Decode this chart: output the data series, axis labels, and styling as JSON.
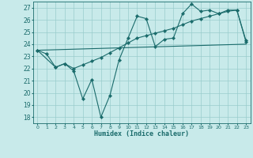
{
  "xlabel": "Humidex (Indice chaleur)",
  "xlim": [
    -0.5,
    23.5
  ],
  "ylim": [
    17.5,
    27.5
  ],
  "xticks": [
    0,
    1,
    2,
    3,
    4,
    5,
    6,
    7,
    8,
    9,
    10,
    11,
    12,
    13,
    14,
    15,
    16,
    17,
    18,
    19,
    20,
    21,
    22,
    23
  ],
  "yticks": [
    18,
    19,
    20,
    21,
    22,
    23,
    24,
    25,
    26,
    27
  ],
  "bg_color": "#c8eaea",
  "grid_color": "#99cccc",
  "line_color": "#1a6b6b",
  "line1_x": [
    0,
    1,
    2,
    3,
    4,
    5,
    6,
    7,
    8,
    9,
    10,
    11,
    12,
    13,
    14,
    15,
    16,
    17,
    18,
    19,
    20,
    21,
    22,
    23
  ],
  "line1_y": [
    23.5,
    23.2,
    22.1,
    22.4,
    21.8,
    19.5,
    21.1,
    18.0,
    19.8,
    22.7,
    24.5,
    26.3,
    26.1,
    23.8,
    24.4,
    24.5,
    26.5,
    27.3,
    26.7,
    26.8,
    26.5,
    26.8,
    26.8,
    24.3
  ],
  "line2_x": [
    0,
    2,
    3,
    4,
    5,
    6,
    7,
    8,
    9,
    10,
    11,
    12,
    13,
    14,
    15,
    16,
    17,
    18,
    19,
    20,
    21,
    22,
    23
  ],
  "line2_y": [
    23.5,
    22.1,
    22.4,
    22.0,
    22.3,
    22.6,
    22.9,
    23.3,
    23.7,
    24.1,
    24.5,
    24.7,
    24.9,
    25.1,
    25.3,
    25.6,
    25.9,
    26.1,
    26.3,
    26.5,
    26.7,
    26.8,
    24.2
  ],
  "line3_x": [
    0,
    23
  ],
  "line3_y": [
    23.5,
    24.0
  ]
}
